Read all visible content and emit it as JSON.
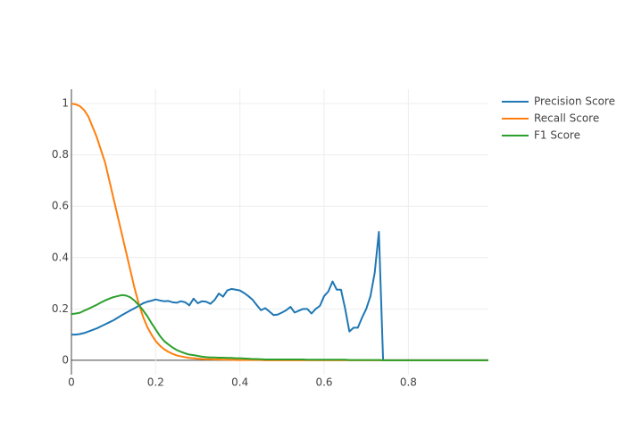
{
  "chart_data": {
    "type": "line",
    "x": [
      0,
      0.01,
      0.02,
      0.03,
      0.04,
      0.05,
      0.06,
      0.07,
      0.08,
      0.09,
      0.1,
      0.11,
      0.12,
      0.13,
      0.14,
      0.15,
      0.16,
      0.17,
      0.18,
      0.19,
      0.2,
      0.21,
      0.22,
      0.23,
      0.24,
      0.25,
      0.26,
      0.27,
      0.28,
      0.29,
      0.3,
      0.31,
      0.32,
      0.33,
      0.34,
      0.35,
      0.36,
      0.37,
      0.38,
      0.39,
      0.4,
      0.41,
      0.42,
      0.43,
      0.44,
      0.45,
      0.46,
      0.47,
      0.48,
      0.49,
      0.5,
      0.51,
      0.52,
      0.53,
      0.54,
      0.55,
      0.56,
      0.57,
      0.58,
      0.59,
      0.6,
      0.61,
      0.62,
      0.63,
      0.64,
      0.65,
      0.66,
      0.67,
      0.68,
      0.69,
      0.7,
      0.71,
      0.72,
      0.73,
      0.74,
      0.75,
      0.76,
      0.77,
      0.78,
      0.79,
      0.8,
      0.81,
      0.82,
      0.83,
      0.84,
      0.85,
      0.86,
      0.87,
      0.88,
      0.89,
      0.9,
      0.91,
      0.92,
      0.93,
      0.94,
      0.95,
      0.96,
      0.97,
      0.98,
      0.99
    ],
    "series": [
      {
        "name": "Precision Score",
        "color": "#1f77b4",
        "values": [
          0.1,
          0.1,
          0.102,
          0.106,
          0.112,
          0.118,
          0.124,
          0.132,
          0.14,
          0.148,
          0.156,
          0.166,
          0.176,
          0.185,
          0.194,
          0.203,
          0.212,
          0.222,
          0.228,
          0.232,
          0.237,
          0.233,
          0.23,
          0.231,
          0.226,
          0.224,
          0.23,
          0.226,
          0.214,
          0.24,
          0.222,
          0.23,
          0.228,
          0.22,
          0.235,
          0.26,
          0.248,
          0.272,
          0.278,
          0.275,
          0.272,
          0.262,
          0.25,
          0.236,
          0.215,
          0.195,
          0.203,
          0.19,
          0.176,
          0.178,
          0.186,
          0.195,
          0.208,
          0.186,
          0.193,
          0.2,
          0.2,
          0.182,
          0.2,
          0.212,
          0.25,
          0.268,
          0.307,
          0.275,
          0.275,
          0.2,
          0.112,
          0.127,
          0.127,
          0.166,
          0.2,
          0.25,
          0.34,
          0.5,
          0,
          0,
          0,
          0,
          0,
          0,
          0,
          0,
          0,
          0,
          0,
          0,
          0,
          0,
          0,
          0,
          0,
          0,
          0,
          0,
          0,
          0,
          0,
          0,
          0,
          0
        ]
      },
      {
        "name": "Recall Score",
        "color": "#ff7f0e",
        "values": [
          1,
          0.997,
          0.99,
          0.975,
          0.95,
          0.91,
          0.87,
          0.82,
          0.77,
          0.7,
          0.63,
          0.56,
          0.49,
          0.42,
          0.35,
          0.28,
          0.22,
          0.17,
          0.13,
          0.1,
          0.075,
          0.057,
          0.043,
          0.033,
          0.025,
          0.019,
          0.015,
          0.012,
          0.009,
          0.008,
          0.006,
          0.005,
          0.004,
          0.004,
          0.003,
          0.003,
          0.002,
          0.002,
          0.002,
          0.001,
          0.001,
          0.001,
          0.001,
          0.001,
          0.001,
          0.001,
          0,
          0,
          0,
          0,
          0,
          0,
          0,
          0,
          0,
          0,
          0,
          0,
          0,
          0,
          0,
          0,
          0,
          0,
          0,
          0,
          0,
          0,
          0,
          0,
          0,
          0,
          0,
          0,
          0,
          0,
          0,
          0,
          0,
          0,
          0,
          0,
          0,
          0,
          0,
          0,
          0,
          0,
          0,
          0,
          0,
          0,
          0,
          0,
          0,
          0,
          0,
          0,
          0,
          0
        ]
      },
      {
        "name": "F1 Score",
        "color": "#2ca02c",
        "values": [
          0.18,
          0.182,
          0.185,
          0.193,
          0.2,
          0.208,
          0.216,
          0.225,
          0.233,
          0.24,
          0.246,
          0.25,
          0.254,
          0.252,
          0.245,
          0.232,
          0.215,
          0.195,
          0.172,
          0.145,
          0.12,
          0.095,
          0.075,
          0.062,
          0.05,
          0.04,
          0.033,
          0.027,
          0.022,
          0.02,
          0.017,
          0.014,
          0.012,
          0.011,
          0.011,
          0.01,
          0.01,
          0.009,
          0.009,
          0.008,
          0.008,
          0.007,
          0.006,
          0.005,
          0.005,
          0.004,
          0.003,
          0.003,
          0.003,
          0.003,
          0.003,
          0.003,
          0.003,
          0.003,
          0.003,
          0.003,
          0.002,
          0.002,
          0.002,
          0.002,
          0.002,
          0.002,
          0.002,
          0.002,
          0.002,
          0.002,
          0.001,
          0.001,
          0.001,
          0.001,
          0.001,
          0.001,
          0.001,
          0.001,
          0,
          0,
          0,
          0,
          0,
          0,
          0,
          0,
          0,
          0,
          0,
          0,
          0,
          0,
          0,
          0,
          0,
          0,
          0,
          0,
          0,
          0,
          0,
          0,
          0,
          0
        ]
      }
    ],
    "xlim": [
      0,
      0.99
    ],
    "ylim": [
      -0.056,
      1.056
    ],
    "xticks": [
      0,
      0.2,
      0.4,
      0.6,
      0.8
    ],
    "yticks": [
      0,
      0.2,
      0.4,
      0.6,
      0.8,
      1
    ],
    "grid": true,
    "legend": "top-right"
  }
}
